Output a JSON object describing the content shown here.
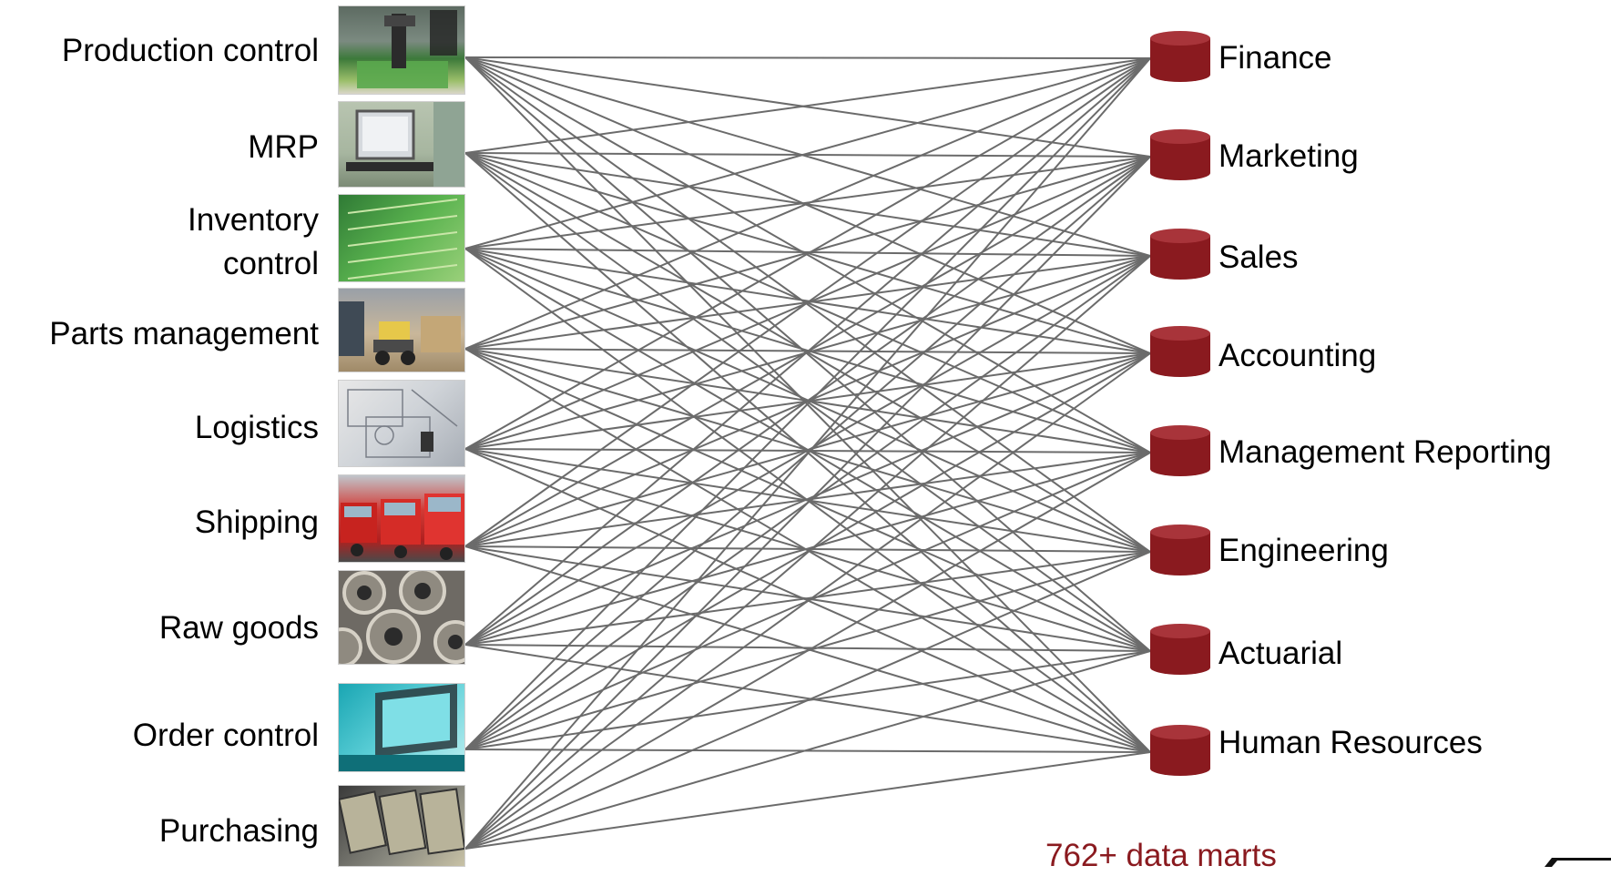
{
  "sources": [
    {
      "label": "Production control",
      "image": "circuit-board-machine-photo"
    },
    {
      "label": "MRP",
      "image": "computer-workstation-photo"
    },
    {
      "label": "Inventory\ncontrol",
      "image": "circuit-boards-rack-photo"
    },
    {
      "label": "Parts management",
      "image": "forklift-warehouse-photo"
    },
    {
      "label": "Logistics",
      "image": "blueprints-desk-photo"
    },
    {
      "label": "Shipping",
      "image": "red-trucks-photo"
    },
    {
      "label": "Raw goods",
      "image": "steel-coils-photo"
    },
    {
      "label": "Order control",
      "image": "cyan-terminal-photo"
    },
    {
      "label": "Purchasing",
      "image": "cash-drawer-photo"
    }
  ],
  "destinations": [
    {
      "label": "Finance",
      "icon": "database-cylinder-icon"
    },
    {
      "label": "Marketing",
      "icon": "database-cylinder-icon"
    },
    {
      "label": "Sales",
      "icon": "database-cylinder-icon"
    },
    {
      "label": "Accounting",
      "icon": "database-cylinder-icon"
    },
    {
      "label": "Management Reporting",
      "icon": "database-cylinder-icon"
    },
    {
      "label": "Engineering",
      "icon": "database-cylinder-icon"
    },
    {
      "label": "Actuarial",
      "icon": "database-cylinder-icon"
    },
    {
      "label": "Human Resources",
      "icon": "database-cylinder-icon"
    }
  ],
  "connections": "every source connects to every destination",
  "footnote": "762+ data marts",
  "colors": {
    "connector_line": "#6b6b6b",
    "database": "#8a1a1f",
    "database_top": "#a8343a",
    "footnote": "#8a1a1f",
    "label": "#000000"
  }
}
